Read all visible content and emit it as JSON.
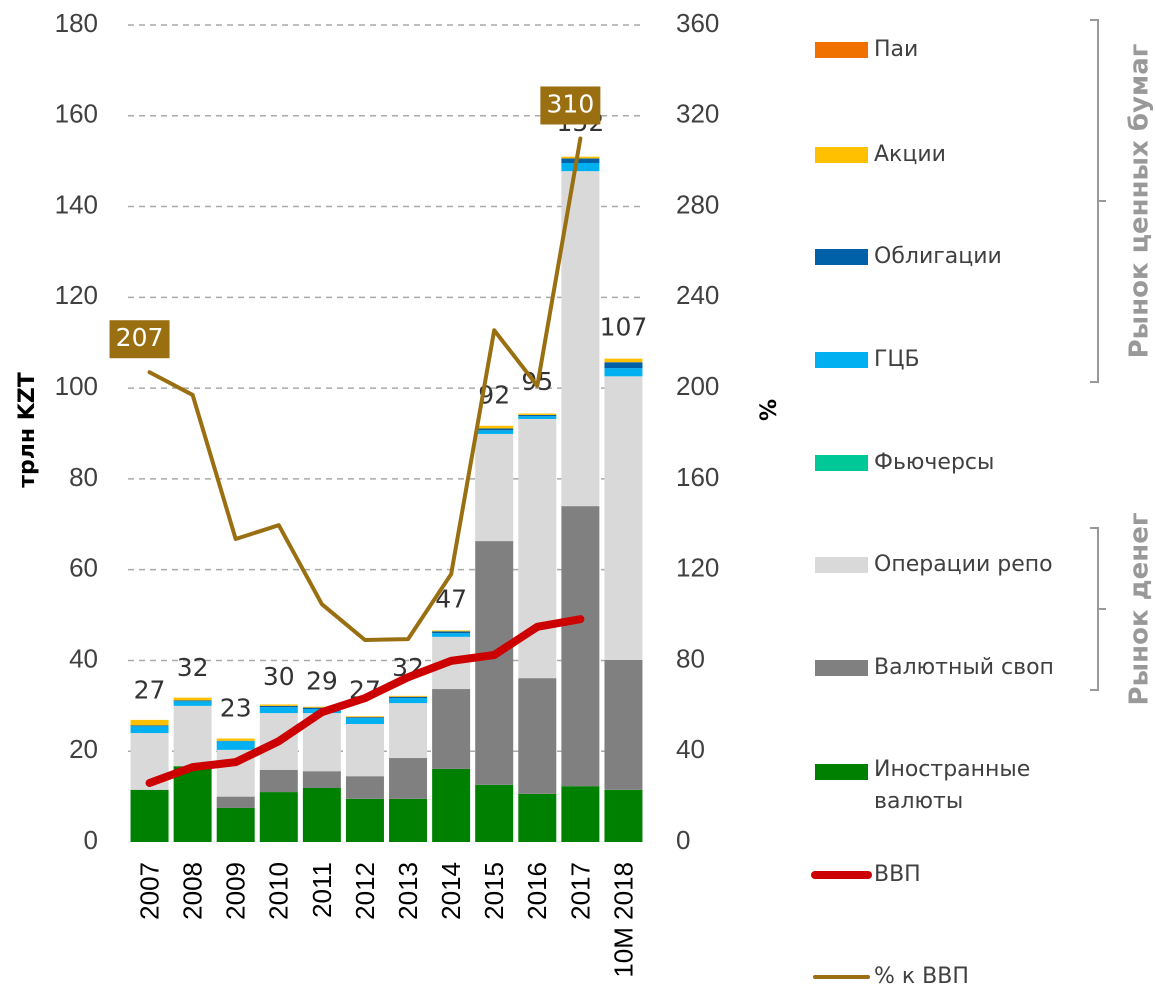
{
  "chart_data": {
    "type": "bar",
    "categories": [
      "2007",
      "2008",
      "2009",
      "2010",
      "2011",
      "2012",
      "2013",
      "2014",
      "2015",
      "2016",
      "2017",
      "10M 2018"
    ],
    "y_label": "трлн KZT",
    "y2_label": "%",
    "ylim": [
      0,
      180
    ],
    "yticks": [
      0,
      20,
      40,
      60,
      80,
      100,
      120,
      140,
      160,
      180
    ],
    "y2lim": [
      0,
      360
    ],
    "y2ticks": [
      0,
      40,
      80,
      120,
      160,
      200,
      240,
      280,
      320,
      360
    ],
    "grid": true,
    "stacked": true,
    "totals": [
      27,
      32,
      23,
      30,
      29,
      27,
      32,
      47,
      92,
      95,
      152,
      107
    ],
    "series": [
      {
        "name": "Иностранные валюты",
        "color": "#008000",
        "values": [
          11.5,
          16.7,
          7.5,
          11,
          11.9,
          9.5,
          9.5,
          16.1,
          12.6,
          10.6,
          12.3,
          11.5
        ]
      },
      {
        "name": "Валютный своп",
        "color": "#808080",
        "values": [
          0,
          0,
          2.5,
          4.9,
          3.7,
          5,
          9,
          17.6,
          53.7,
          25.5,
          61.7,
          28.6
        ]
      },
      {
        "name": "Операции репо",
        "color": "#d9d9d9",
        "values": [
          12.5,
          13.3,
          10.3,
          12.5,
          12.8,
          11.5,
          12.1,
          11.5,
          23.6,
          57.1,
          73.8,
          62.5
        ]
      },
      {
        "name": "Фьючерсы",
        "color": "#00c896",
        "values": [
          0,
          0,
          0,
          0,
          0,
          0,
          0,
          0,
          0,
          0,
          0,
          0
        ]
      },
      {
        "name": "ГЦБ",
        "color": "#00b0f0",
        "values": [
          1.5,
          1,
          1.9,
          1.3,
          0.9,
          1.3,
          1.1,
          0.8,
          0.8,
          0.6,
          1.8,
          1.8
        ]
      },
      {
        "name": "Облигации",
        "color": "#0060a8",
        "values": [
          0.2,
          0.2,
          0.1,
          0.3,
          0.3,
          0.2,
          0.3,
          0.4,
          0.4,
          0.3,
          1,
          1.3
        ]
      },
      {
        "name": "Акции",
        "color": "#ffc000",
        "values": [
          1.2,
          0.6,
          0.5,
          0.3,
          0.2,
          0.2,
          0.2,
          0.2,
          0.6,
          0.3,
          0.4,
          0.8
        ]
      },
      {
        "name": "Паи",
        "color": "#f07000",
        "values": [
          0,
          0,
          0,
          0,
          0,
          0,
          0,
          0,
          0,
          0,
          0,
          0
        ]
      },
      {
        "name": "ВВП",
        "type": "line",
        "color": "#cc0000",
        "values": [
          13,
          16.5,
          17.6,
          22.2,
          28.6,
          31.7,
          36.3,
          39.9,
          41.2,
          47.4,
          49.1,
          null
        ]
      },
      {
        "name": "% к ВВП",
        "type": "line",
        "axis": "y2",
        "color": "#9a6f12",
        "values": [
          207,
          197,
          133.5,
          139.6,
          104.8,
          89,
          89.4,
          118,
          225.5,
          201,
          310,
          null
        ],
        "value_labels": [
          "207",
          null,
          null,
          null,
          null,
          null,
          null,
          null,
          null,
          null,
          "310",
          null
        ]
      }
    ],
    "brackets": [
      {
        "label": "Рынок ценных бумаг"
      },
      {
        "label": "Рынок денег"
      }
    ]
  }
}
